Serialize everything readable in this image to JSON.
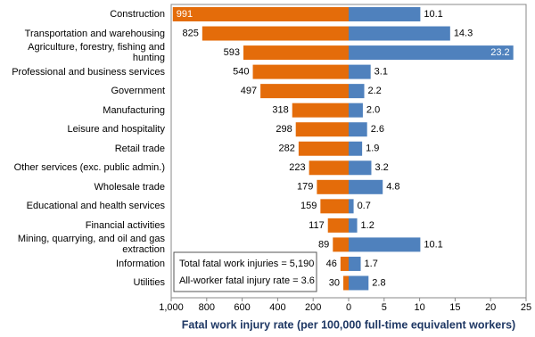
{
  "chart_data": {
    "type": "butterfly-bar",
    "x_label": "Fatal work injury rate (per 100,000 full-time equivalent workers)",
    "categories": [
      "Construction",
      "Transportation and warehousing",
      "Agriculture, forestry, fishing and hunting",
      "Professional and business services",
      "Government",
      "Manufacturing",
      "Leisure and hospitality",
      "Retail trade",
      "Other services (exc. public admin.)",
      "Wholesale trade",
      "Educational and health services",
      "Financial activities",
      "Mining, quarrying, and oil and gas extraction",
      "Information",
      "Utilities"
    ],
    "series": [
      {
        "color": "#e46c0a",
        "axis": "x",
        "values": [
          991,
          825,
          593,
          540,
          497,
          318,
          298,
          282,
          223,
          179,
          159,
          117,
          89,
          46,
          30
        ]
      },
      {
        "color": "#4f81bd",
        "axis": "x2",
        "values": [
          10.1,
          14.3,
          23.2,
          3.1,
          2.2,
          2.0,
          2.6,
          1.9,
          3.2,
          4.8,
          0.7,
          1.2,
          10.1,
          1.7,
          2.8
        ],
        "value_labels": [
          "10.1",
          "14.3",
          "23.2",
          "3.1",
          "2.2",
          "2.0",
          "2.6",
          "1.9",
          "3.2",
          "4.8",
          "0.7",
          "1.2",
          "10.1",
          "1.7",
          "2.8"
        ]
      }
    ],
    "xlim": [
      1000,
      0
    ],
    "xticks": [
      {
        "value": 1000,
        "label": "1,000"
      },
      800,
      600,
      400,
      200,
      0
    ],
    "x2lim": [
      0,
      25
    ],
    "x2ticks": [
      5,
      10,
      15,
      20,
      25
    ],
    "annotations": [
      "Total fatal work injuries = 5,190",
      "All-worker fatal injury rate = 3.6"
    ]
  }
}
